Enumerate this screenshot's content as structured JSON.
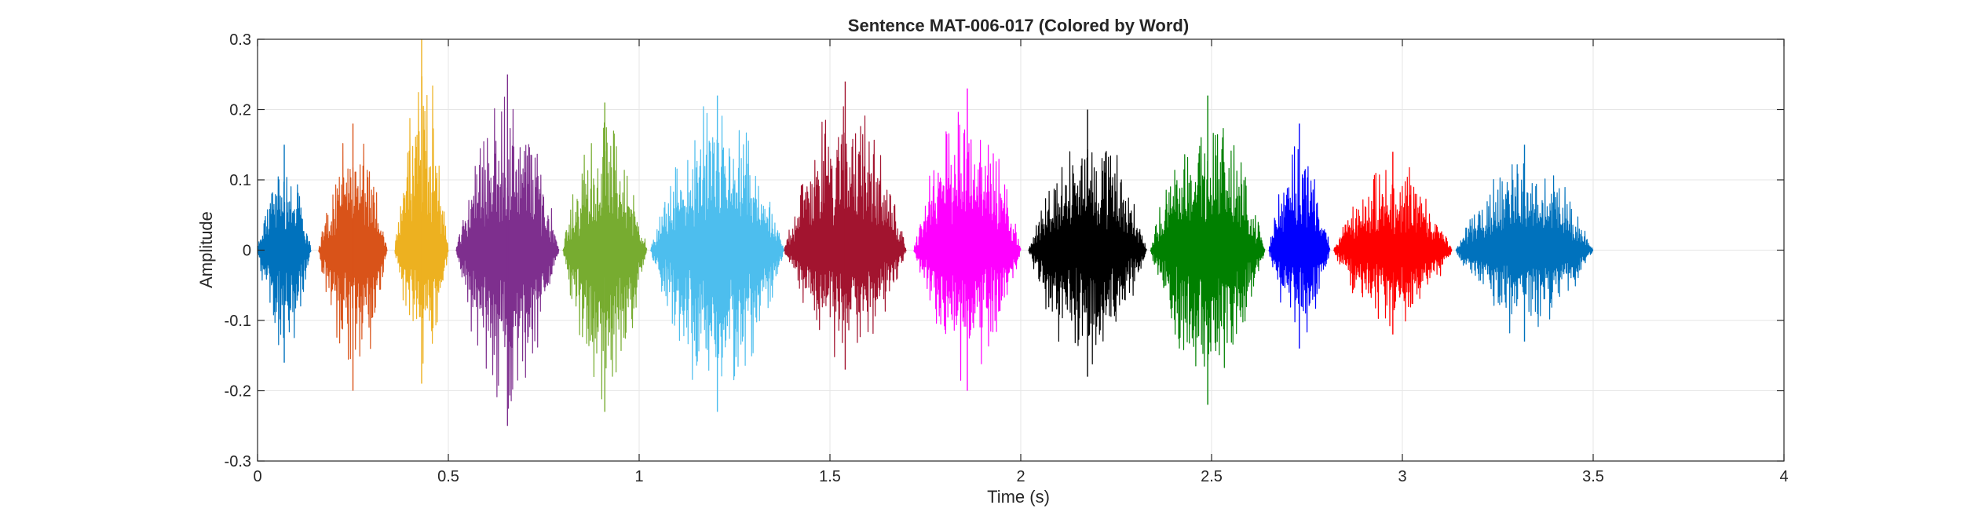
{
  "chart_data": {
    "type": "line",
    "title": "Sentence MAT-006-017 (Colored by Word)",
    "xlabel": "Time (s)",
    "ylabel": "Amplitude",
    "xlim": [
      0,
      4
    ],
    "ylim": [
      -0.3,
      0.3
    ],
    "x_ticks": [
      "0",
      "0.5",
      "1",
      "1.5",
      "2",
      "2.5",
      "3",
      "3.5",
      "4"
    ],
    "y_ticks": [
      "-0.3",
      "-0.2",
      "-0.1",
      "0",
      "0.1",
      "0.2",
      "0.3"
    ],
    "grid": true,
    "series": [
      {
        "color": "#0072BD",
        "start": 0.0,
        "end": 0.14,
        "max": 0.15,
        "min": -0.16
      },
      {
        "color": "#D95319",
        "start": 0.16,
        "end": 0.34,
        "max": 0.18,
        "min": -0.2
      },
      {
        "color": "#EDB120",
        "start": 0.36,
        "end": 0.5,
        "max": 0.3,
        "min": -0.19
      },
      {
        "color": "#7E2F8E",
        "start": 0.52,
        "end": 0.79,
        "max": 0.25,
        "min": -0.25
      },
      {
        "color": "#77AC30",
        "start": 0.8,
        "end": 1.02,
        "max": 0.21,
        "min": -0.23
      },
      {
        "color": "#4DBEEE",
        "start": 1.03,
        "end": 1.38,
        "max": 0.22,
        "min": -0.23
      },
      {
        "color": "#A2142F",
        "start": 1.38,
        "end": 1.7,
        "max": 0.24,
        "min": -0.17
      },
      {
        "color": "#FF00FF",
        "start": 1.72,
        "end": 2.0,
        "max": 0.23,
        "min": -0.2
      },
      {
        "color": "#000000",
        "start": 2.02,
        "end": 2.33,
        "max": 0.2,
        "min": -0.18
      },
      {
        "color": "#008000",
        "start": 2.34,
        "end": 2.64,
        "max": 0.22,
        "min": -0.22
      },
      {
        "color": "#0000FF",
        "start": 2.65,
        "end": 2.81,
        "max": 0.18,
        "min": -0.14
      },
      {
        "color": "#FF0000",
        "start": 2.82,
        "end": 3.13,
        "max": 0.14,
        "min": -0.12
      },
      {
        "color": "#0072BD",
        "start": 3.14,
        "end": 3.5,
        "max": 0.15,
        "min": -0.13
      }
    ]
  }
}
